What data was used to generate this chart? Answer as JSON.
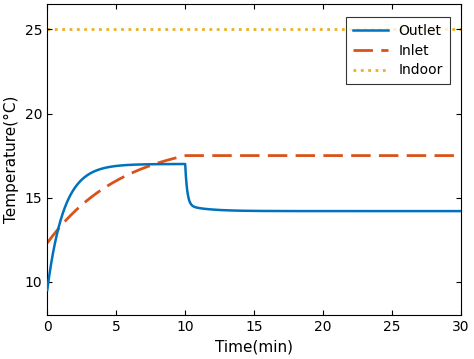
{
  "title": "",
  "xlabel": "Time(min)",
  "ylabel": "Temperature(°C)",
  "xlim": [
    0,
    30
  ],
  "ylim": [
    8.0,
    26.5
  ],
  "xticks": [
    0,
    5,
    10,
    15,
    20,
    25,
    30
  ],
  "yticks": [
    10,
    15,
    20,
    25
  ],
  "outlet_color": "#0072BD",
  "inlet_color": "#D95319",
  "indoor_color": "#EDB120",
  "outlet_label": "Outlet",
  "inlet_label": "Inlet",
  "indoor_label": "Indoor",
  "indoor_temp": 25.0,
  "outlet_start": 9.5,
  "outlet_peak": 17.0,
  "outlet_drop": 14.55,
  "outlet_steady": 14.2,
  "inlet_start": 12.3,
  "inlet_peak": 17.5,
  "inlet_steady": 17.5,
  "t_switch": 10.0,
  "t_end": 30.0,
  "lw_outlet": 1.8,
  "lw_inlet": 2.0,
  "lw_indoor": 2.0
}
